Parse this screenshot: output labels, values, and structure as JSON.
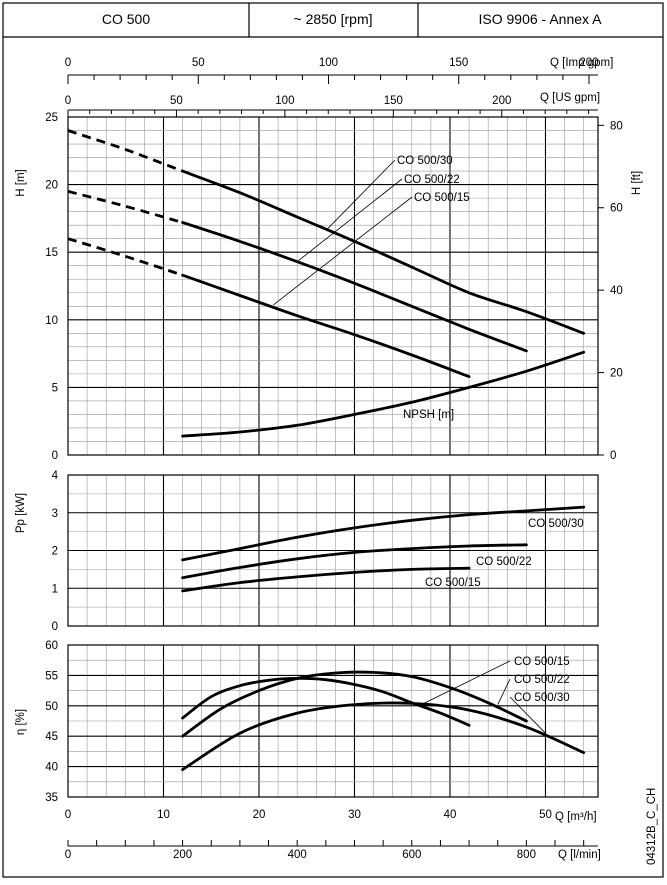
{
  "header": {
    "model": "CO 500",
    "speed": "~ 2850 [rpm]",
    "standard": "ISO 9906 - Annex A"
  },
  "drawing_code": "04312B_C_CH",
  "chart_data": [
    {
      "id": "head",
      "type": "line",
      "x_unit": "m3/h",
      "ylabel_left": "H [m]",
      "ylabel_right": "H [ft]",
      "ylim": [
        0,
        25
      ],
      "yticks": [
        "0",
        "5",
        "10",
        "15",
        "20",
        "25"
      ],
      "y2ticks": [
        "0",
        "20",
        "40",
        "60",
        "80"
      ],
      "top_axis_imp": {
        "label": "Q [Imp gpm]",
        "ticks": [
          "0",
          "50",
          "100",
          "150",
          "200"
        ]
      },
      "top_axis_us": {
        "label": "Q [US gpm]",
        "ticks": [
          "0",
          "50",
          "100",
          "150",
          "200"
        ]
      },
      "series": [
        {
          "name": "CO 500/30",
          "x": [
            0,
            6,
            12,
            18,
            24,
            30,
            36,
            42,
            48,
            54
          ],
          "y": [
            24,
            22.6,
            21.0,
            19.4,
            17.6,
            15.8,
            13.9,
            12.0,
            10.6,
            9.0
          ]
        },
        {
          "name": "CO 500/22",
          "x": [
            0,
            6,
            12,
            18,
            24,
            30,
            36,
            42,
            48
          ],
          "y": [
            19.5,
            18.4,
            17.2,
            15.8,
            14.3,
            12.7,
            11.0,
            9.3,
            7.7
          ]
        },
        {
          "name": "CO 500/15",
          "x": [
            0,
            6,
            12,
            18,
            24,
            30,
            36,
            42
          ],
          "y": [
            16,
            14.7,
            13.3,
            11.8,
            10.3,
            8.9,
            7.4,
            5.8
          ]
        },
        {
          "name": "NPSH [m]",
          "x": [
            12,
            18,
            24,
            30,
            36,
            42,
            48,
            54
          ],
          "y": [
            1.4,
            1.7,
            2.2,
            3.0,
            3.9,
            5.0,
            6.2,
            7.6
          ]
        }
      ]
    },
    {
      "id": "power",
      "type": "line",
      "ylabel": "Pp [kW]",
      "ylim": [
        0,
        4
      ],
      "yticks": [
        "0",
        "1",
        "2",
        "3",
        "4"
      ],
      "series": [
        {
          "name": "CO 500/30",
          "x": [
            12,
            18,
            24,
            30,
            36,
            42,
            48,
            54
          ],
          "y": [
            1.75,
            2.05,
            2.35,
            2.6,
            2.8,
            2.95,
            3.05,
            3.15
          ]
        },
        {
          "name": "CO 500/22",
          "x": [
            12,
            18,
            24,
            30,
            36,
            42,
            48
          ],
          "y": [
            1.28,
            1.55,
            1.78,
            1.95,
            2.05,
            2.12,
            2.15
          ]
        },
        {
          "name": "CO 500/15",
          "x": [
            12,
            18,
            24,
            30,
            36,
            42
          ],
          "y": [
            0.93,
            1.15,
            1.3,
            1.42,
            1.5,
            1.53
          ]
        }
      ]
    },
    {
      "id": "efficiency",
      "type": "line",
      "ylabel": "η [%]",
      "ylim": [
        35,
        60
      ],
      "yticks": [
        "35",
        "40",
        "45",
        "50",
        "55",
        "60"
      ],
      "x_axis_m3h": {
        "label": "Q [m³/h]",
        "ticks": [
          "0",
          "10",
          "20",
          "30",
          "40",
          "50"
        ]
      },
      "x_axis_lmin": {
        "label": "Q [l/min]",
        "ticks": [
          "0",
          "200",
          "400",
          "600",
          "800"
        ]
      },
      "series": [
        {
          "name": "CO 500/15",
          "x": [
            12,
            15,
            18,
            21,
            24,
            27,
            30,
            33,
            36,
            39,
            42
          ],
          "y": [
            48.0,
            51.5,
            53.3,
            54.2,
            54.5,
            54.3,
            53.5,
            52.3,
            50.5,
            48.8,
            46.8
          ]
        },
        {
          "name": "CO 500/22",
          "x": [
            12,
            16,
            20,
            24,
            28,
            32,
            36,
            40,
            44,
            48
          ],
          "y": [
            45.0,
            49.5,
            52.5,
            54.5,
            55.4,
            55.5,
            54.8,
            53.0,
            50.5,
            47.5
          ]
        },
        {
          "name": "CO 500/30",
          "x": [
            12,
            18,
            24,
            30,
            36,
            42,
            48,
            54
          ],
          "y": [
            39.5,
            45.5,
            48.8,
            50.2,
            50.4,
            49.3,
            46.5,
            42.3
          ]
        }
      ]
    }
  ]
}
